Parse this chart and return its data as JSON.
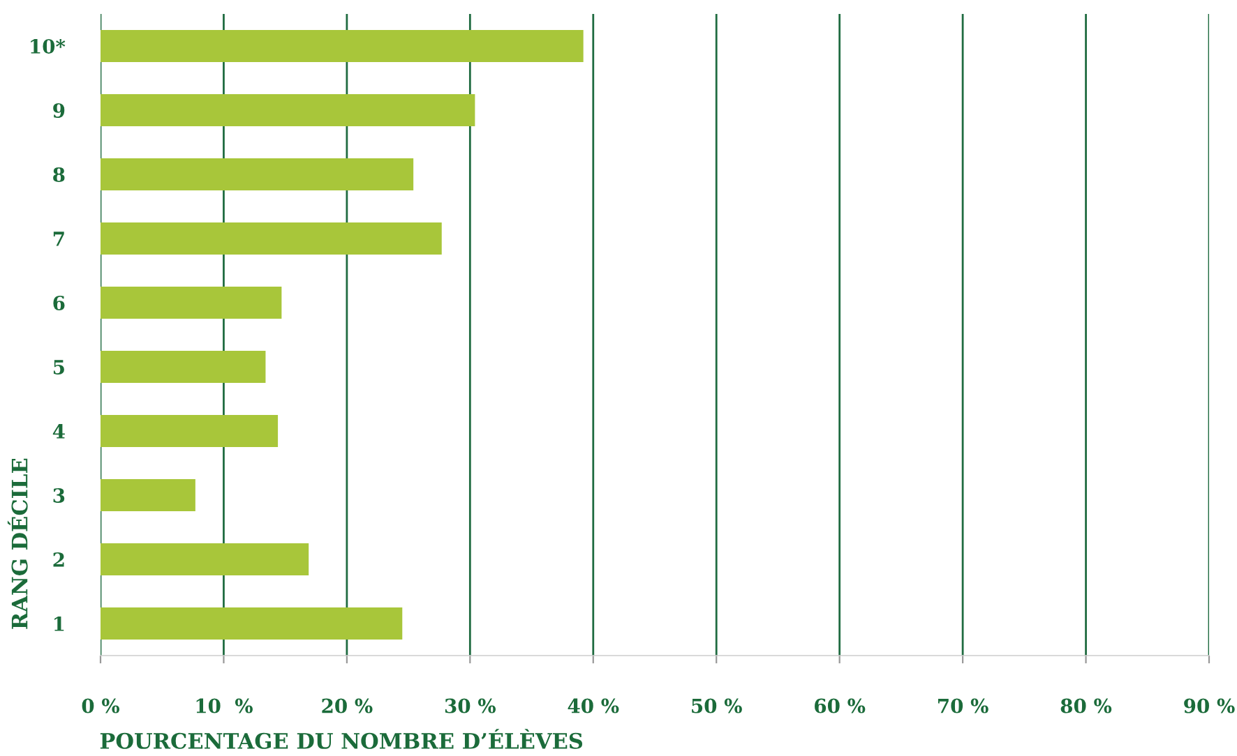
{
  "chart_data": {
    "type": "bar",
    "orientation": "horizontal",
    "categories": [
      "10*",
      "9",
      "8",
      "7",
      "6",
      "5",
      "4",
      "3",
      "2",
      "1"
    ],
    "values": [
      39.2,
      30.4,
      25.4,
      27.7,
      14.7,
      13.4,
      14.4,
      7.7,
      16.9,
      24.5
    ],
    "color": "#a8c63a",
    "xlabel": "POURCENTAGE DU NOMBRE D’ÉLÈVES",
    "ylabel": "RANG DÉCILE",
    "xlim": [
      0,
      90
    ],
    "xticks": [
      {
        "value": 0,
        "label": "0 %"
      },
      {
        "value": 10,
        "label": "10  %"
      },
      {
        "value": 20,
        "label": "20 %"
      },
      {
        "value": 30,
        "label": "30 %"
      },
      {
        "value": 40,
        "label": "40 %"
      },
      {
        "value": 50,
        "label": "50 %"
      },
      {
        "value": 60,
        "label": "60 %"
      },
      {
        "value": 70,
        "label": "70 %"
      },
      {
        "value": 80,
        "label": "80 %"
      },
      {
        "value": 90,
        "label": "90 %"
      }
    ],
    "grid": "x",
    "legend": false
  }
}
